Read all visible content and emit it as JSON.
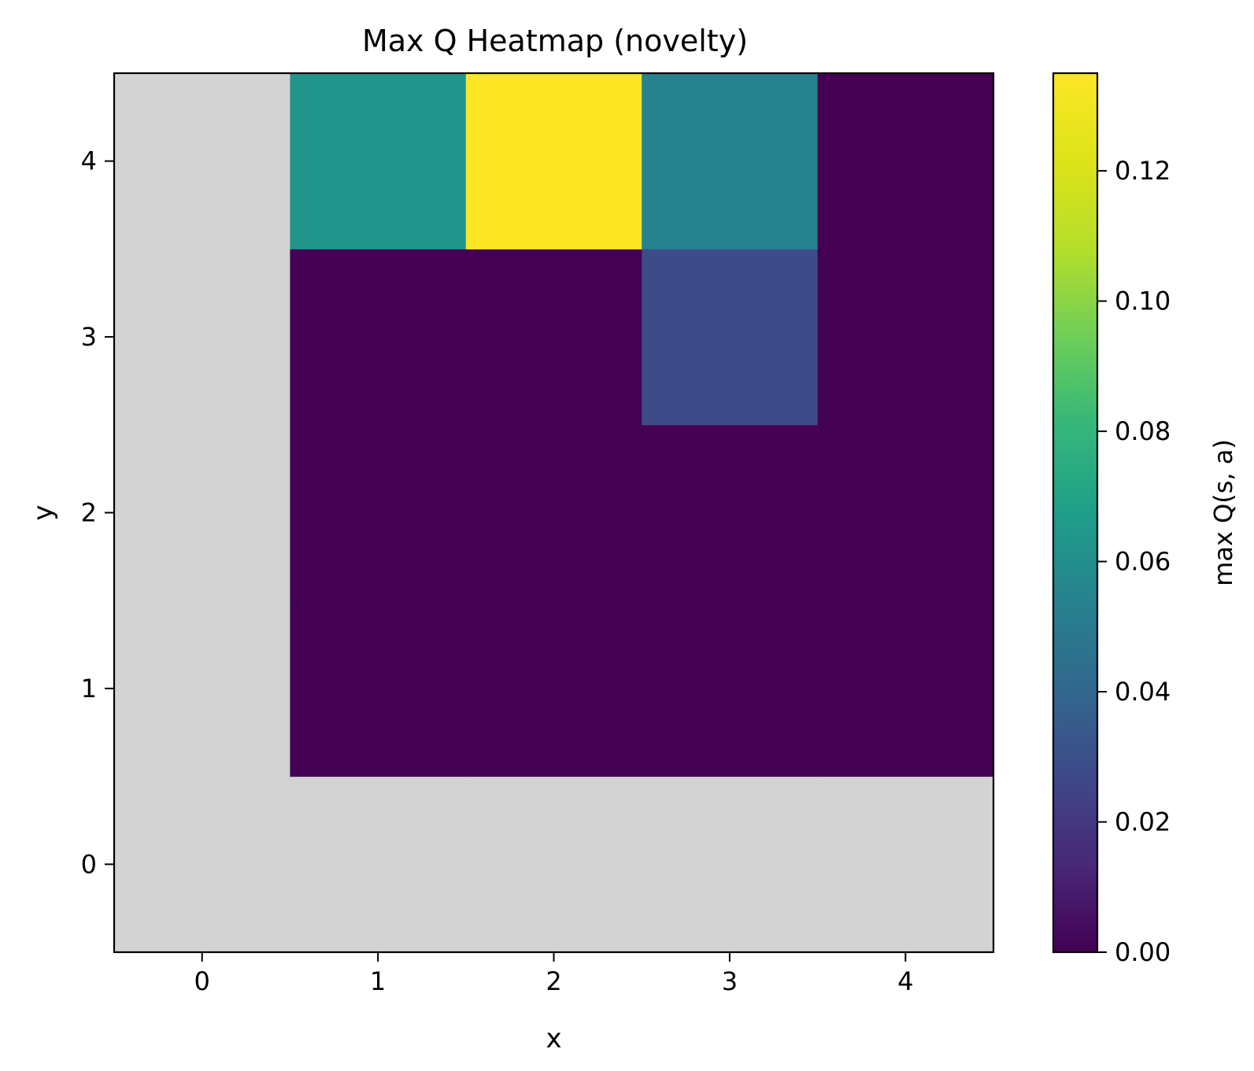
{
  "chart_data": {
    "type": "heatmap",
    "title": "Max Q Heatmap (novelty)",
    "xlabel": "x",
    "ylabel": "y",
    "x": [
      0,
      1,
      2,
      3,
      4
    ],
    "y": [
      0,
      1,
      2,
      3,
      4
    ],
    "x_tick_labels": [
      "0",
      "1",
      "2",
      "3",
      "4"
    ],
    "y_tick_labels": [
      "0",
      "1",
      "2",
      "3",
      "4"
    ],
    "y_axis_direction": "up",
    "xlim": [
      -0.5,
      4.5
    ],
    "ylim": [
      -0.5,
      4.5
    ],
    "values_note": "rows indexed by y (0..4), columns by x (0..4); null = masked cell",
    "values": [
      [
        null,
        null,
        null,
        null,
        null
      ],
      [
        null,
        0.0,
        0.0,
        0.0,
        0.0
      ],
      [
        null,
        0.0,
        0.0,
        0.0,
        0.0
      ],
      [
        null,
        0.0,
        0.0,
        0.028,
        0.0
      ],
      [
        null,
        0.063,
        0.135,
        0.054,
        0.0
      ]
    ],
    "masked_color": "#d3d3d3",
    "colormap": "viridis",
    "colorbar": {
      "label": "max Q(s, a)",
      "range": [
        0.0,
        0.135
      ],
      "ticks": [
        0.0,
        0.02,
        0.04,
        0.06,
        0.08,
        0.1,
        0.12
      ],
      "tick_labels": [
        "0.00",
        "0.02",
        "0.04",
        "0.06",
        "0.08",
        "0.10",
        "0.12"
      ],
      "placement": "right"
    },
    "grid": false
  }
}
